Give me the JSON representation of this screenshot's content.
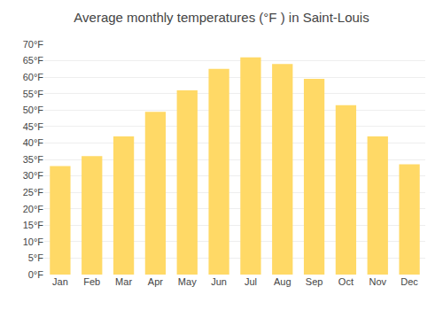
{
  "chart_data": {
    "type": "bar",
    "title": "Average monthly temperatures (°F ) in Saint-Louis",
    "categories": [
      "Jan",
      "Feb",
      "Mar",
      "Apr",
      "May",
      "Jun",
      "Jul",
      "Aug",
      "Sep",
      "Oct",
      "Nov",
      "Dec"
    ],
    "values": [
      33.0,
      36.0,
      42.0,
      49.5,
      56.0,
      62.5,
      66.0,
      64.0,
      59.5,
      51.5,
      42.0,
      33.5
    ],
    "color": "#FFD966",
    "ylim": [
      0,
      70
    ],
    "yticks": [
      {
        "value": 0,
        "label": "0°F"
      },
      {
        "value": 5,
        "label": "5°F"
      },
      {
        "value": 10,
        "label": "10°F"
      },
      {
        "value": 15,
        "label": "15°F"
      },
      {
        "value": 20,
        "label": "20°F"
      },
      {
        "value": 25,
        "label": "25°F"
      },
      {
        "value": 30,
        "label": "30°F"
      },
      {
        "value": 35,
        "label": "35°F"
      },
      {
        "value": 40,
        "label": "40°F"
      },
      {
        "value": 45,
        "label": "45°F"
      },
      {
        "value": 50,
        "label": "50°F"
      },
      {
        "value": 55,
        "label": "55°F"
      },
      {
        "value": 60,
        "label": "60°F"
      },
      {
        "value": 65,
        "label": "65°F"
      },
      {
        "value": 70,
        "label": "70°F"
      }
    ],
    "grid": true
  }
}
